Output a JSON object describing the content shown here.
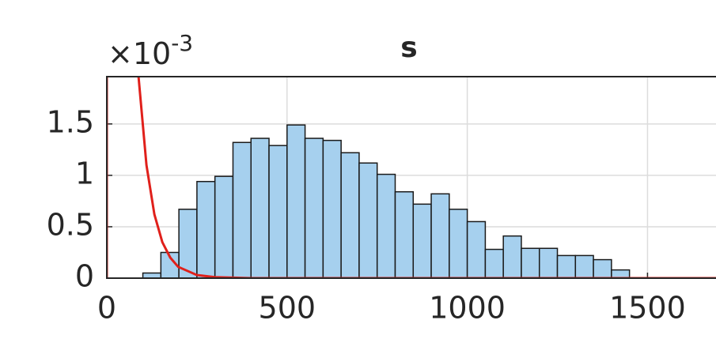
{
  "chart_data": {
    "type": "histogram",
    "title": "s",
    "y_multiplier": "×10",
    "y_exponent": "-3",
    "bins": [
      100,
      150,
      200,
      250,
      300,
      350,
      400,
      450,
      500,
      550,
      600,
      650,
      700,
      750,
      800,
      850,
      900,
      950,
      1000,
      1050,
      1100,
      1150,
      1200,
      1250,
      1300,
      1350,
      1400,
      1450
    ],
    "values": [
      0.05,
      0.25,
      0.67,
      0.94,
      0.99,
      1.32,
      1.36,
      1.29,
      1.49,
      1.36,
      1.34,
      1.22,
      1.12,
      1.01,
      0.84,
      0.72,
      0.82,
      0.67,
      0.55,
      0.28,
      0.41,
      0.29,
      0.29,
      0.22,
      0.22,
      0.18,
      0.08
    ],
    "color": "#a6d0ee",
    "edge_color": "#1a1a1a",
    "series": [
      {
        "type": "line",
        "color": "#e0201b",
        "x": [
          0,
          0,
          44,
          88,
          110,
          132,
          154,
          176,
          198,
          250,
          300,
          400,
          1690
        ],
        "values": [
          0,
          1.96,
          null,
          1.96,
          1.1,
          0.62,
          0.35,
          0.2,
          0.11,
          0.03,
          0.01,
          0,
          0
        ]
      }
    ],
    "xlim": [
      0,
      1690
    ],
    "ylim": [
      0,
      1.96
    ],
    "xticks": [
      0,
      500,
      1000,
      1500
    ],
    "yticks": [
      0,
      0.5,
      1,
      1.5
    ],
    "grid": true
  }
}
